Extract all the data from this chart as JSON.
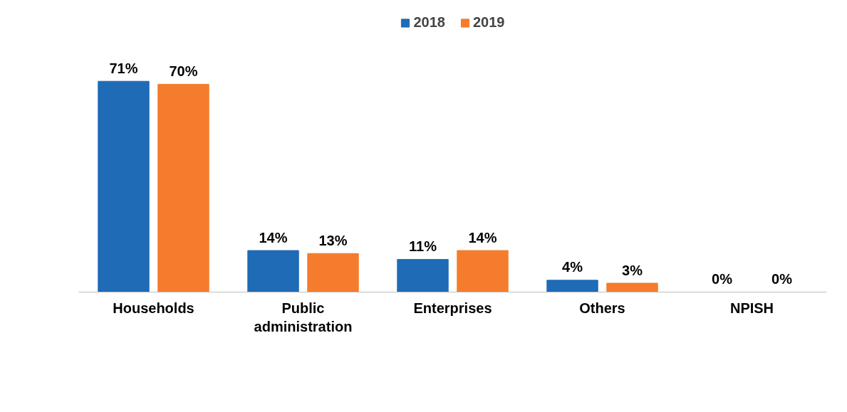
{
  "chart_data": {
    "type": "bar",
    "categories": [
      "Households",
      "Public administration",
      "Enterprises",
      "Others",
      "NPISH"
    ],
    "series": [
      {
        "name": "2018",
        "color": "#1f6bb5",
        "values": [
          71,
          14,
          11,
          4,
          0
        ],
        "value_labels": [
          "71%",
          "14%",
          "11%",
          "4%",
          "0%"
        ]
      },
      {
        "name": "2019",
        "color": "#f47c2c",
        "values": [
          70,
          13,
          14,
          3,
          0
        ],
        "value_labels": [
          "70%",
          "13%",
          "14%",
          "3%",
          "0%"
        ]
      }
    ],
    "legend": "top"
  }
}
